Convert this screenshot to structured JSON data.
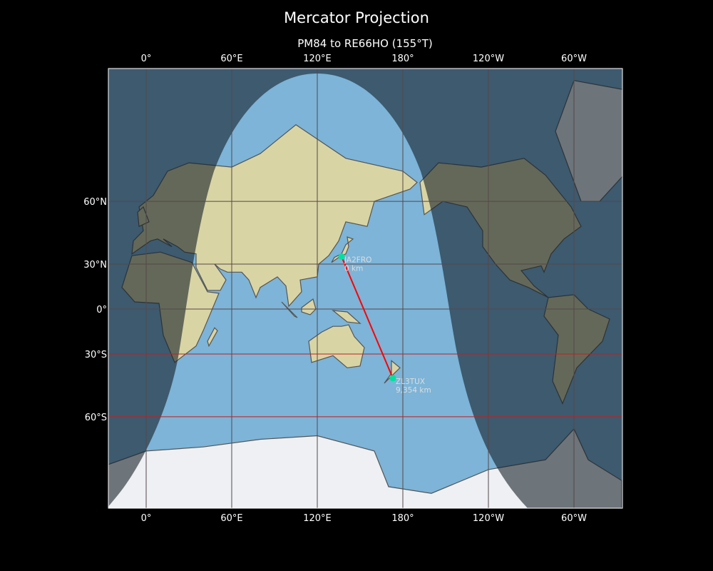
{
  "title": "Mercator Projection",
  "subtitle": "PM84 to RE66HO (155°T)",
  "map": {
    "projection": "mercator",
    "central_longitude": 154,
    "lon_ticks": [
      {
        "lon": 0,
        "label": "0°"
      },
      {
        "lon": 60,
        "label": "60°E"
      },
      {
        "lon": 120,
        "label": "120°E"
      },
      {
        "lon": 180,
        "label": "180°"
      },
      {
        "lon": 240,
        "label": "120°W"
      },
      {
        "lon": 300,
        "label": "60°W"
      }
    ],
    "lat_ticks": [
      {
        "lat": 60,
        "label": "60°N",
        "highlight": false
      },
      {
        "lat": 30,
        "label": "30°N",
        "highlight": false
      },
      {
        "lat": 0,
        "label": "0°",
        "highlight": false
      },
      {
        "lat": -30,
        "label": "30°S",
        "highlight": true
      },
      {
        "lat": -60,
        "label": "60°S",
        "highlight": true
      }
    ],
    "colors": {
      "path": "#ff0000",
      "marker": "#00e0a0",
      "grid": "#5a4040",
      "grid_highlight": "#c02020",
      "day_ocean": "#7db4d8",
      "land": "#d9d4a4"
    },
    "points": [
      {
        "call": "JA2FRO",
        "distance": "0 km",
        "lon": 137,
        "lat": 34.5
      },
      {
        "call": "ZL3TUX",
        "distance": "9,354 km",
        "lon": 173,
        "lat": -43.5
      }
    ]
  }
}
